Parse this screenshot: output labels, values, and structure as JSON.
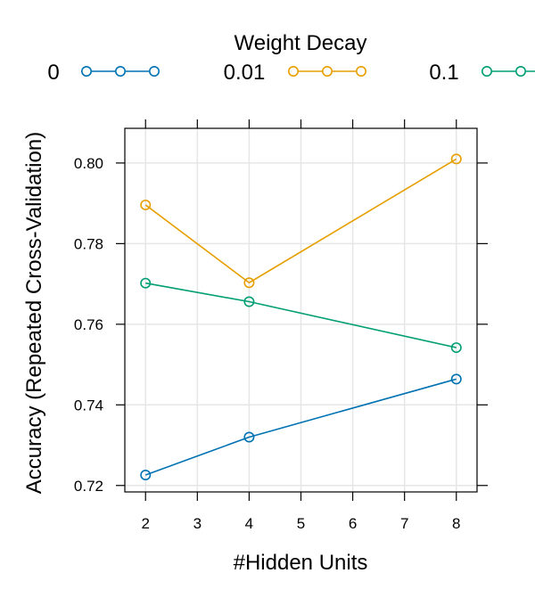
{
  "chart_data": {
    "type": "line",
    "xlabel": "#Hidden Units",
    "ylabel": "Accuracy (Repeated Cross-Validation)",
    "x": [
      2,
      4,
      8
    ],
    "xlim": [
      1.6,
      8.4
    ],
    "ylim": [
      0.7184,
      0.8086
    ],
    "xticks": [
      2,
      3,
      4,
      5,
      6,
      7,
      8
    ],
    "yticks": [
      0.72,
      0.74,
      0.76,
      0.78,
      0.8
    ],
    "ytick_labels": [
      "0.72",
      "0.74",
      "0.76",
      "0.78",
      "0.80"
    ],
    "grid": true,
    "legend": {
      "title": "Weight Decay",
      "placement": "top"
    },
    "series": [
      {
        "name": "0",
        "color": "#0072B2",
        "values": [
          0.7226,
          0.732,
          0.7464
        ]
      },
      {
        "name": "0.01",
        "color": "#E69F00",
        "values": [
          0.7896,
          0.7703,
          0.801
        ]
      },
      {
        "name": "0.1",
        "color": "#009E73",
        "values": [
          0.7702,
          0.7656,
          0.7542
        ]
      }
    ]
  }
}
